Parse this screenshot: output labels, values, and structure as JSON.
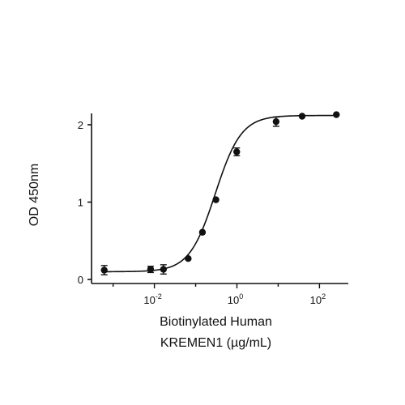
{
  "chart_data": {
    "type": "scatter",
    "title": "",
    "xlabel": "Biotinylated Human KREMEN1 (µg/mL)",
    "xlabel_lines": [
      "Biotinylated Human",
      "KREMEN1 (µg/mL)"
    ],
    "ylabel": "OD 450nm",
    "x_scale": "log10",
    "xlim": [
      0.0003,
      500
    ],
    "ylim": [
      0,
      2.2
    ],
    "x_ticks": [
      {
        "value": 0.01,
        "base": "10",
        "exp": "-2"
      },
      {
        "value": 1,
        "base": "10",
        "exp": "0"
      },
      {
        "value": 100,
        "base": "10",
        "exp": "2"
      }
    ],
    "y_ticks": [
      {
        "value": 0,
        "label": "0"
      },
      {
        "value": 1,
        "label": "1"
      },
      {
        "value": 2,
        "label": "2"
      }
    ],
    "grid": false,
    "legend": "none",
    "series": [
      {
        "points": [
          {
            "x": 0.00061,
            "y": 0.12,
            "err": 0.06
          },
          {
            "x": 0.0081,
            "y": 0.13,
            "err": 0.04
          },
          {
            "x": 0.0166,
            "y": 0.13,
            "err": 0.06
          },
          {
            "x": 0.066,
            "y": 0.27,
            "err": 0
          },
          {
            "x": 0.146,
            "y": 0.61,
            "err": 0
          },
          {
            "x": 0.31,
            "y": 1.03,
            "err": 0
          },
          {
            "x": 0.99,
            "y": 1.65,
            "err": 0.05
          },
          {
            "x": 8.9,
            "y": 2.04,
            "err": 0.06
          },
          {
            "x": 38,
            "y": 2.11,
            "err": 0
          },
          {
            "x": 257,
            "y": 2.13,
            "err": 0
          }
        ],
        "fit": {
          "model": "4PL",
          "bottom": 0.1,
          "top": 2.12,
          "ec50": 0.3,
          "hill": 1.38
        }
      }
    ],
    "colors": {
      "points": "#111111",
      "fit_line": "#111111",
      "axis": "#111111"
    }
  }
}
